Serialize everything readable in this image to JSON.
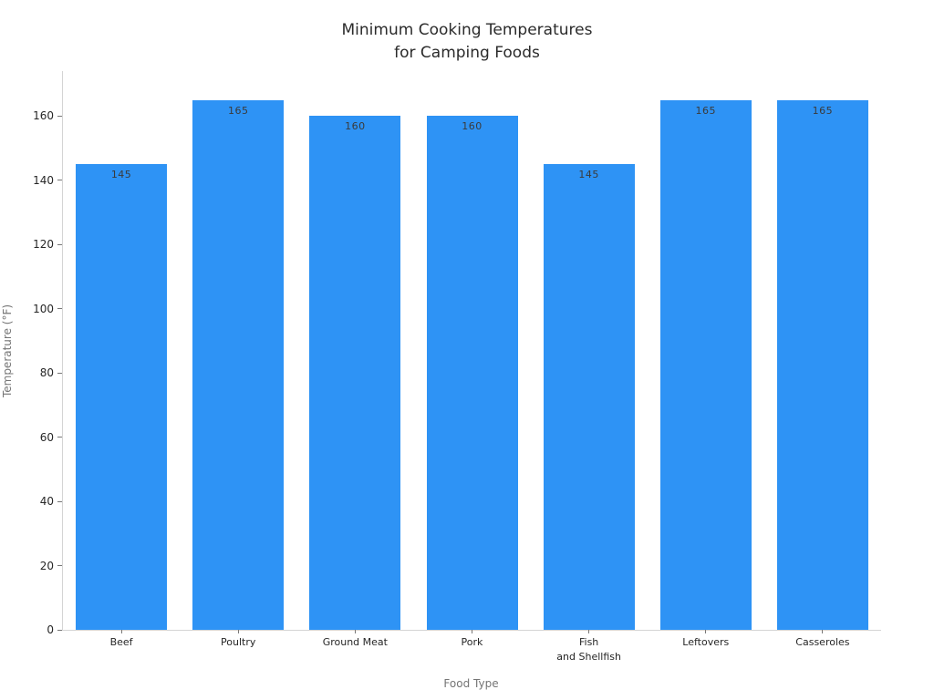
{
  "chart_data": {
    "type": "bar",
    "title": "Minimum Cooking Temperatures\nfor Camping Foods",
    "xlabel": "Food Type",
    "ylabel": "Temperature (°F)",
    "categories": [
      "Beef",
      "Poultry",
      "Ground Meat",
      "Pork",
      "Fish\nand Shellfish",
      "Leftovers",
      "Casseroles"
    ],
    "values": [
      145,
      165,
      160,
      160,
      145,
      165,
      165
    ],
    "value_labels": [
      "145",
      "165",
      "160",
      "160",
      "145",
      "165",
      "165"
    ],
    "yticks": [
      0,
      20,
      40,
      60,
      80,
      100,
      120,
      140,
      160
    ],
    "ylim": [
      0,
      174
    ],
    "grid": false,
    "legend": null,
    "colors": {
      "bar": "#2E93F5",
      "bar_value_label": "#3a3a3a",
      "axis_spine": "#d4d4d4",
      "tick_mark": "#777777",
      "tick_label": "#262626",
      "axis_title": "#757575",
      "title": "#2b2b2b",
      "background": "#ffffff"
    }
  }
}
